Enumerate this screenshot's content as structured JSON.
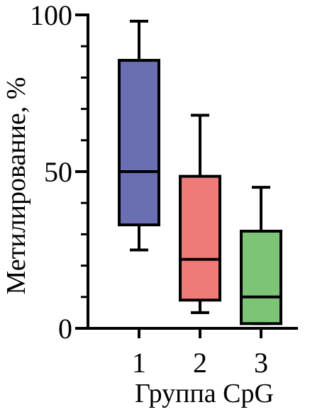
{
  "chart_data": {
    "type": "box",
    "title": "",
    "xlabel": "Группа CpG",
    "ylabel": "Метилирование, %",
    "ylim": [
      0,
      100
    ],
    "y_ticks": [
      "0",
      "50",
      "100"
    ],
    "y_minor_tick_step": 10,
    "grid": false,
    "legend": "none",
    "categories": [
      "1",
      "2",
      "3"
    ],
    "series": [
      {
        "category": "1",
        "min": 25,
        "q1": 33,
        "median": 50,
        "q3": 85.5,
        "max": 98,
        "color": "#6a6eb3"
      },
      {
        "category": "2",
        "min": 5,
        "q1": 9,
        "median": 22,
        "q3": 48.5,
        "max": 68,
        "color": "#ef7b78"
      },
      {
        "category": "3",
        "min": 1.5,
        "q1": 1.5,
        "median": 10,
        "q3": 31,
        "max": 45,
        "color": "#7dc477"
      }
    ]
  }
}
